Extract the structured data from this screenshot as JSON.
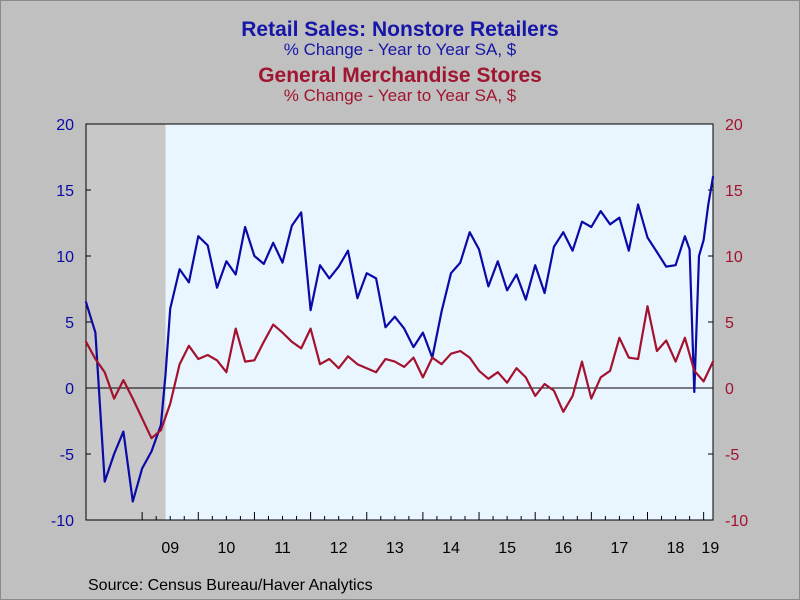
{
  "title_series1": "Retail Sales: Nonstore Retailers",
  "subtitle_series1": "% Change - Year to Year   SA, $",
  "title_series2": "General Merchandise Stores",
  "subtitle_series2": "% Change - Year to Year   SA, $",
  "source": "Source:  Census Bureau/Haver Analytics",
  "colors": {
    "series1": "#0a0aa6",
    "series2": "#a3122e",
    "plot_background": "#eaf6ff",
    "recession_shade": "#c8c8c8",
    "frame_background": "#c0c0c0"
  },
  "chart_data": {
    "type": "line",
    "xlim": [
      "2008-01",
      "2019-03"
    ],
    "x_ticks": [
      "09",
      "10",
      "11",
      "12",
      "13",
      "14",
      "15",
      "16",
      "17",
      "18",
      "19"
    ],
    "left_axis": {
      "ylim": [
        -10,
        20
      ],
      "ticks": [
        "-10",
        "-5",
        "0",
        "5",
        "10",
        "15",
        "20"
      ],
      "series": "Retail Sales: Nonstore Retailers"
    },
    "right_axis": {
      "ylim": [
        -10,
        20
      ],
      "ticks": [
        "-10",
        "-5",
        "0",
        "5",
        "10",
        "15",
        "20"
      ],
      "series": "General Merchandise Stores"
    },
    "zero_line": true,
    "recession_shading": [
      [
        "2008-01",
        "2009-06"
      ]
    ],
    "series": [
      {
        "name": "Retail Sales: Nonstore Retailers",
        "axis": "left",
        "x": [
          "2008-01",
          "2008-03",
          "2008-05",
          "2008-07",
          "2008-09",
          "2008-11",
          "2009-01",
          "2009-03",
          "2009-05",
          "2009-06",
          "2009-07",
          "2009-09",
          "2009-11",
          "2010-01",
          "2010-03",
          "2010-05",
          "2010-07",
          "2010-09",
          "2010-11",
          "2011-01",
          "2011-03",
          "2011-05",
          "2011-07",
          "2011-09",
          "2011-11",
          "2012-01",
          "2012-03",
          "2012-05",
          "2012-07",
          "2012-09",
          "2012-11",
          "2013-01",
          "2013-03",
          "2013-05",
          "2013-07",
          "2013-09",
          "2013-11",
          "2014-01",
          "2014-03",
          "2014-05",
          "2014-07",
          "2014-09",
          "2014-11",
          "2015-01",
          "2015-03",
          "2015-05",
          "2015-07",
          "2015-09",
          "2015-11",
          "2016-01",
          "2016-03",
          "2016-05",
          "2016-07",
          "2016-09",
          "2016-11",
          "2017-01",
          "2017-03",
          "2017-05",
          "2017-07",
          "2017-09",
          "2017-11",
          "2018-01",
          "2018-03",
          "2018-05",
          "2018-07",
          "2018-09",
          "2018-10",
          "2018-11",
          "2018-12",
          "2019-01",
          "2019-02",
          "2019-03"
        ],
        "y": [
          6.5,
          4.2,
          -7.1,
          -5.0,
          -3.3,
          -8.6,
          -6.1,
          -4.8,
          -2.8,
          1.0,
          6.0,
          9.0,
          8.0,
          11.5,
          10.8,
          7.6,
          9.6,
          8.6,
          12.2,
          10.0,
          9.4,
          11.0,
          9.5,
          12.3,
          13.3,
          5.9,
          9.3,
          8.3,
          9.2,
          10.4,
          6.8,
          8.7,
          8.3,
          4.6,
          5.4,
          4.5,
          3.1,
          4.2,
          2.3,
          5.8,
          8.7,
          9.5,
          11.8,
          10.5,
          7.7,
          9.6,
          7.4,
          8.6,
          6.7,
          9.3,
          7.2,
          10.7,
          11.8,
          10.4,
          12.6,
          12.2,
          13.4,
          12.4,
          12.9,
          10.4,
          13.9,
          11.4,
          10.3,
          9.2,
          9.3,
          11.5,
          10.5,
          -0.3,
          10.0,
          11.2,
          13.9,
          16.0
        ]
      },
      {
        "name": "General Merchandise Stores",
        "axis": "right",
        "x": [
          "2008-01",
          "2008-03",
          "2008-05",
          "2008-07",
          "2008-09",
          "2008-11",
          "2009-01",
          "2009-03",
          "2009-05",
          "2009-07",
          "2009-09",
          "2009-11",
          "2010-01",
          "2010-03",
          "2010-05",
          "2010-07",
          "2010-09",
          "2010-11",
          "2011-01",
          "2011-03",
          "2011-05",
          "2011-07",
          "2011-09",
          "2011-11",
          "2012-01",
          "2012-03",
          "2012-05",
          "2012-07",
          "2012-09",
          "2012-11",
          "2013-01",
          "2013-03",
          "2013-05",
          "2013-07",
          "2013-09",
          "2013-11",
          "2014-01",
          "2014-03",
          "2014-05",
          "2014-07",
          "2014-09",
          "2014-11",
          "2015-01",
          "2015-03",
          "2015-05",
          "2015-07",
          "2015-09",
          "2015-11",
          "2016-01",
          "2016-03",
          "2016-05",
          "2016-07",
          "2016-09",
          "2016-11",
          "2017-01",
          "2017-03",
          "2017-05",
          "2017-07",
          "2017-09",
          "2017-11",
          "2018-01",
          "2018-03",
          "2018-05",
          "2018-07",
          "2018-09",
          "2018-11",
          "2019-01",
          "2019-03"
        ],
        "y": [
          3.5,
          2.2,
          1.2,
          -0.8,
          0.6,
          -0.8,
          -2.3,
          -3.8,
          -3.2,
          -1.2,
          1.8,
          3.2,
          2.2,
          2.5,
          2.1,
          1.2,
          4.5,
          2.0,
          2.1,
          3.5,
          4.8,
          4.2,
          3.5,
          3.0,
          4.5,
          1.8,
          2.2,
          1.5,
          2.4,
          1.8,
          1.5,
          1.2,
          2.2,
          2.0,
          1.6,
          2.3,
          0.8,
          2.3,
          1.8,
          2.6,
          2.8,
          2.3,
          1.3,
          0.7,
          1.2,
          0.4,
          1.5,
          0.8,
          -0.6,
          0.3,
          -0.2,
          -1.8,
          -0.6,
          2.0,
          -0.8,
          0.8,
          1.3,
          3.8,
          2.3,
          2.2,
          6.2,
          2.8,
          3.6,
          2.0,
          3.8,
          1.3,
          0.5,
          2.0
        ]
      }
    ]
  }
}
